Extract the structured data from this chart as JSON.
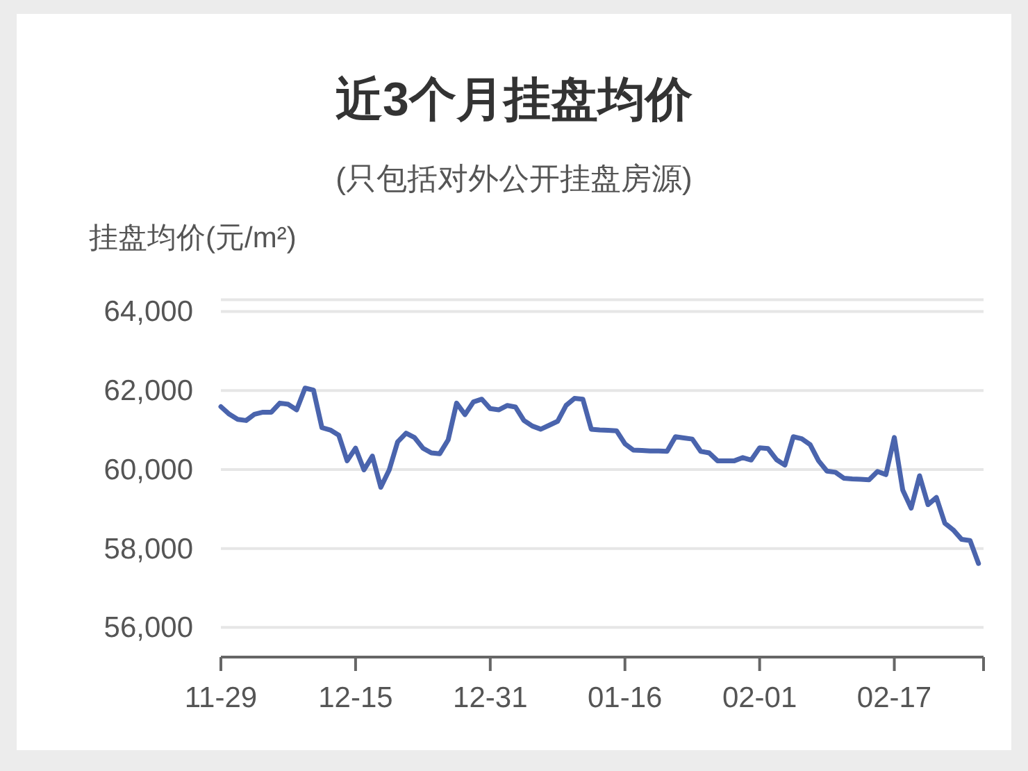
{
  "chart_data": {
    "type": "line",
    "title": "近3个月挂盘均价",
    "subtitle": "(只包括对外公开挂盘房源)",
    "ylabel": "挂盘均价(元/m²)",
    "categories": [
      "11-29",
      null,
      null,
      null,
      null,
      null,
      null,
      null,
      null,
      null,
      null,
      null,
      null,
      null,
      null,
      null,
      "12-15",
      null,
      null,
      null,
      null,
      null,
      null,
      null,
      null,
      null,
      null,
      null,
      null,
      null,
      null,
      null,
      "12-31",
      null,
      null,
      null,
      null,
      null,
      null,
      null,
      null,
      null,
      null,
      null,
      null,
      null,
      null,
      null,
      "01-16",
      null,
      null,
      null,
      null,
      null,
      null,
      null,
      null,
      null,
      null,
      null,
      null,
      null,
      null,
      null,
      "02-01",
      null,
      null,
      null,
      null,
      null,
      null,
      null,
      null,
      null,
      null,
      null,
      null,
      null,
      null,
      null,
      "02-17",
      null,
      null,
      null,
      null,
      null,
      null,
      null,
      null,
      null,
      null
    ],
    "series": [
      {
        "color": "#4a64ad",
        "values": [
          61590,
          61400,
          61270,
          61240,
          61400,
          61450,
          61450,
          61680,
          61650,
          61510,
          62060,
          62010,
          61060,
          61000,
          60870,
          60220,
          60540,
          59990,
          60340,
          59550,
          59990,
          60700,
          60920,
          60810,
          60540,
          60420,
          60400,
          60750,
          61680,
          61390,
          61710,
          61780,
          61540,
          61510,
          61620,
          61580,
          61240,
          61100,
          61020,
          61120,
          61220,
          61620,
          61800,
          61780,
          61020,
          61000,
          60990,
          60980,
          60650,
          60490,
          60480,
          60470,
          60470,
          60460,
          60830,
          60800,
          60770,
          60460,
          60420,
          60220,
          60220,
          60220,
          60300,
          60240,
          60550,
          60530,
          60250,
          60110,
          60830,
          60780,
          60630,
          60220,
          59960,
          59930,
          59780,
          59760,
          59750,
          59740,
          59950,
          59870,
          60810,
          59480,
          59020,
          59840,
          59110,
          59290,
          58640,
          58470,
          58230,
          58200,
          57620
        ]
      }
    ],
    "ylim": [
      55250,
      64300
    ],
    "yticks": [
      {
        "value": 56000,
        "label": "56,000"
      },
      {
        "value": 58000,
        "label": "58,000"
      },
      {
        "value": 60000,
        "label": "60,000"
      },
      {
        "value": 62000,
        "label": "62,000"
      },
      {
        "value": 64000,
        "label": "64,000"
      }
    ],
    "grid": "y"
  }
}
